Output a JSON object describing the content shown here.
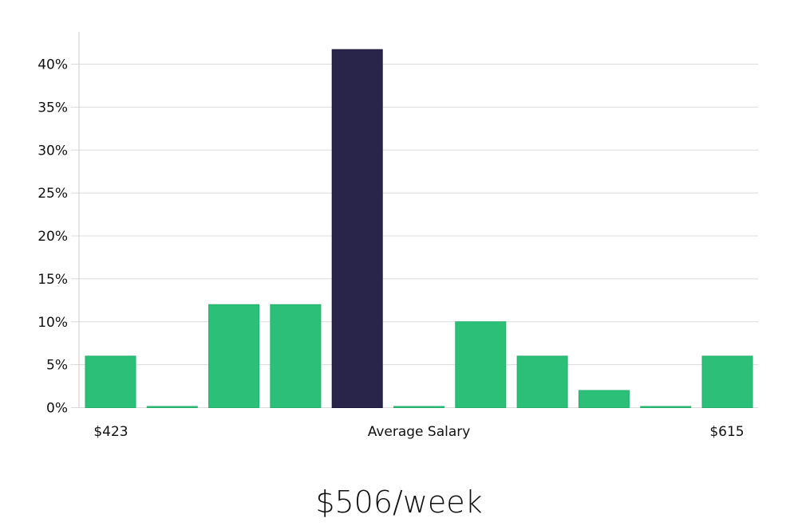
{
  "chart_data": {
    "type": "bar",
    "title": "",
    "xlabel": "Average Salary",
    "ylabel": "",
    "ylim": [
      0,
      43.5
    ],
    "yticks": [
      0,
      5,
      10,
      15,
      20,
      25,
      30,
      35,
      40
    ],
    "ytick_labels": [
      "0%",
      "5%",
      "10%",
      "15%",
      "20%",
      "25%",
      "30%",
      "35%",
      "40%"
    ],
    "grid": true,
    "x_labels": {
      "left": "$423",
      "center": "Average Salary",
      "right": "$615"
    },
    "categories": [
      "bin1",
      "bin2",
      "bin3",
      "bin4",
      "bin5",
      "bin6",
      "bin7",
      "bin8",
      "bin9",
      "bin10",
      "bin11"
    ],
    "values": [
      6,
      0,
      12,
      12,
      41.7,
      0,
      10,
      6,
      2,
      0,
      6
    ],
    "highlight_index": 4,
    "colors": {
      "bar": "#2bbf78",
      "highlight": "#28244a",
      "grid": "#dcdcdc",
      "axis": "#cccccc"
    }
  },
  "footer": {
    "value": "$506/week"
  }
}
